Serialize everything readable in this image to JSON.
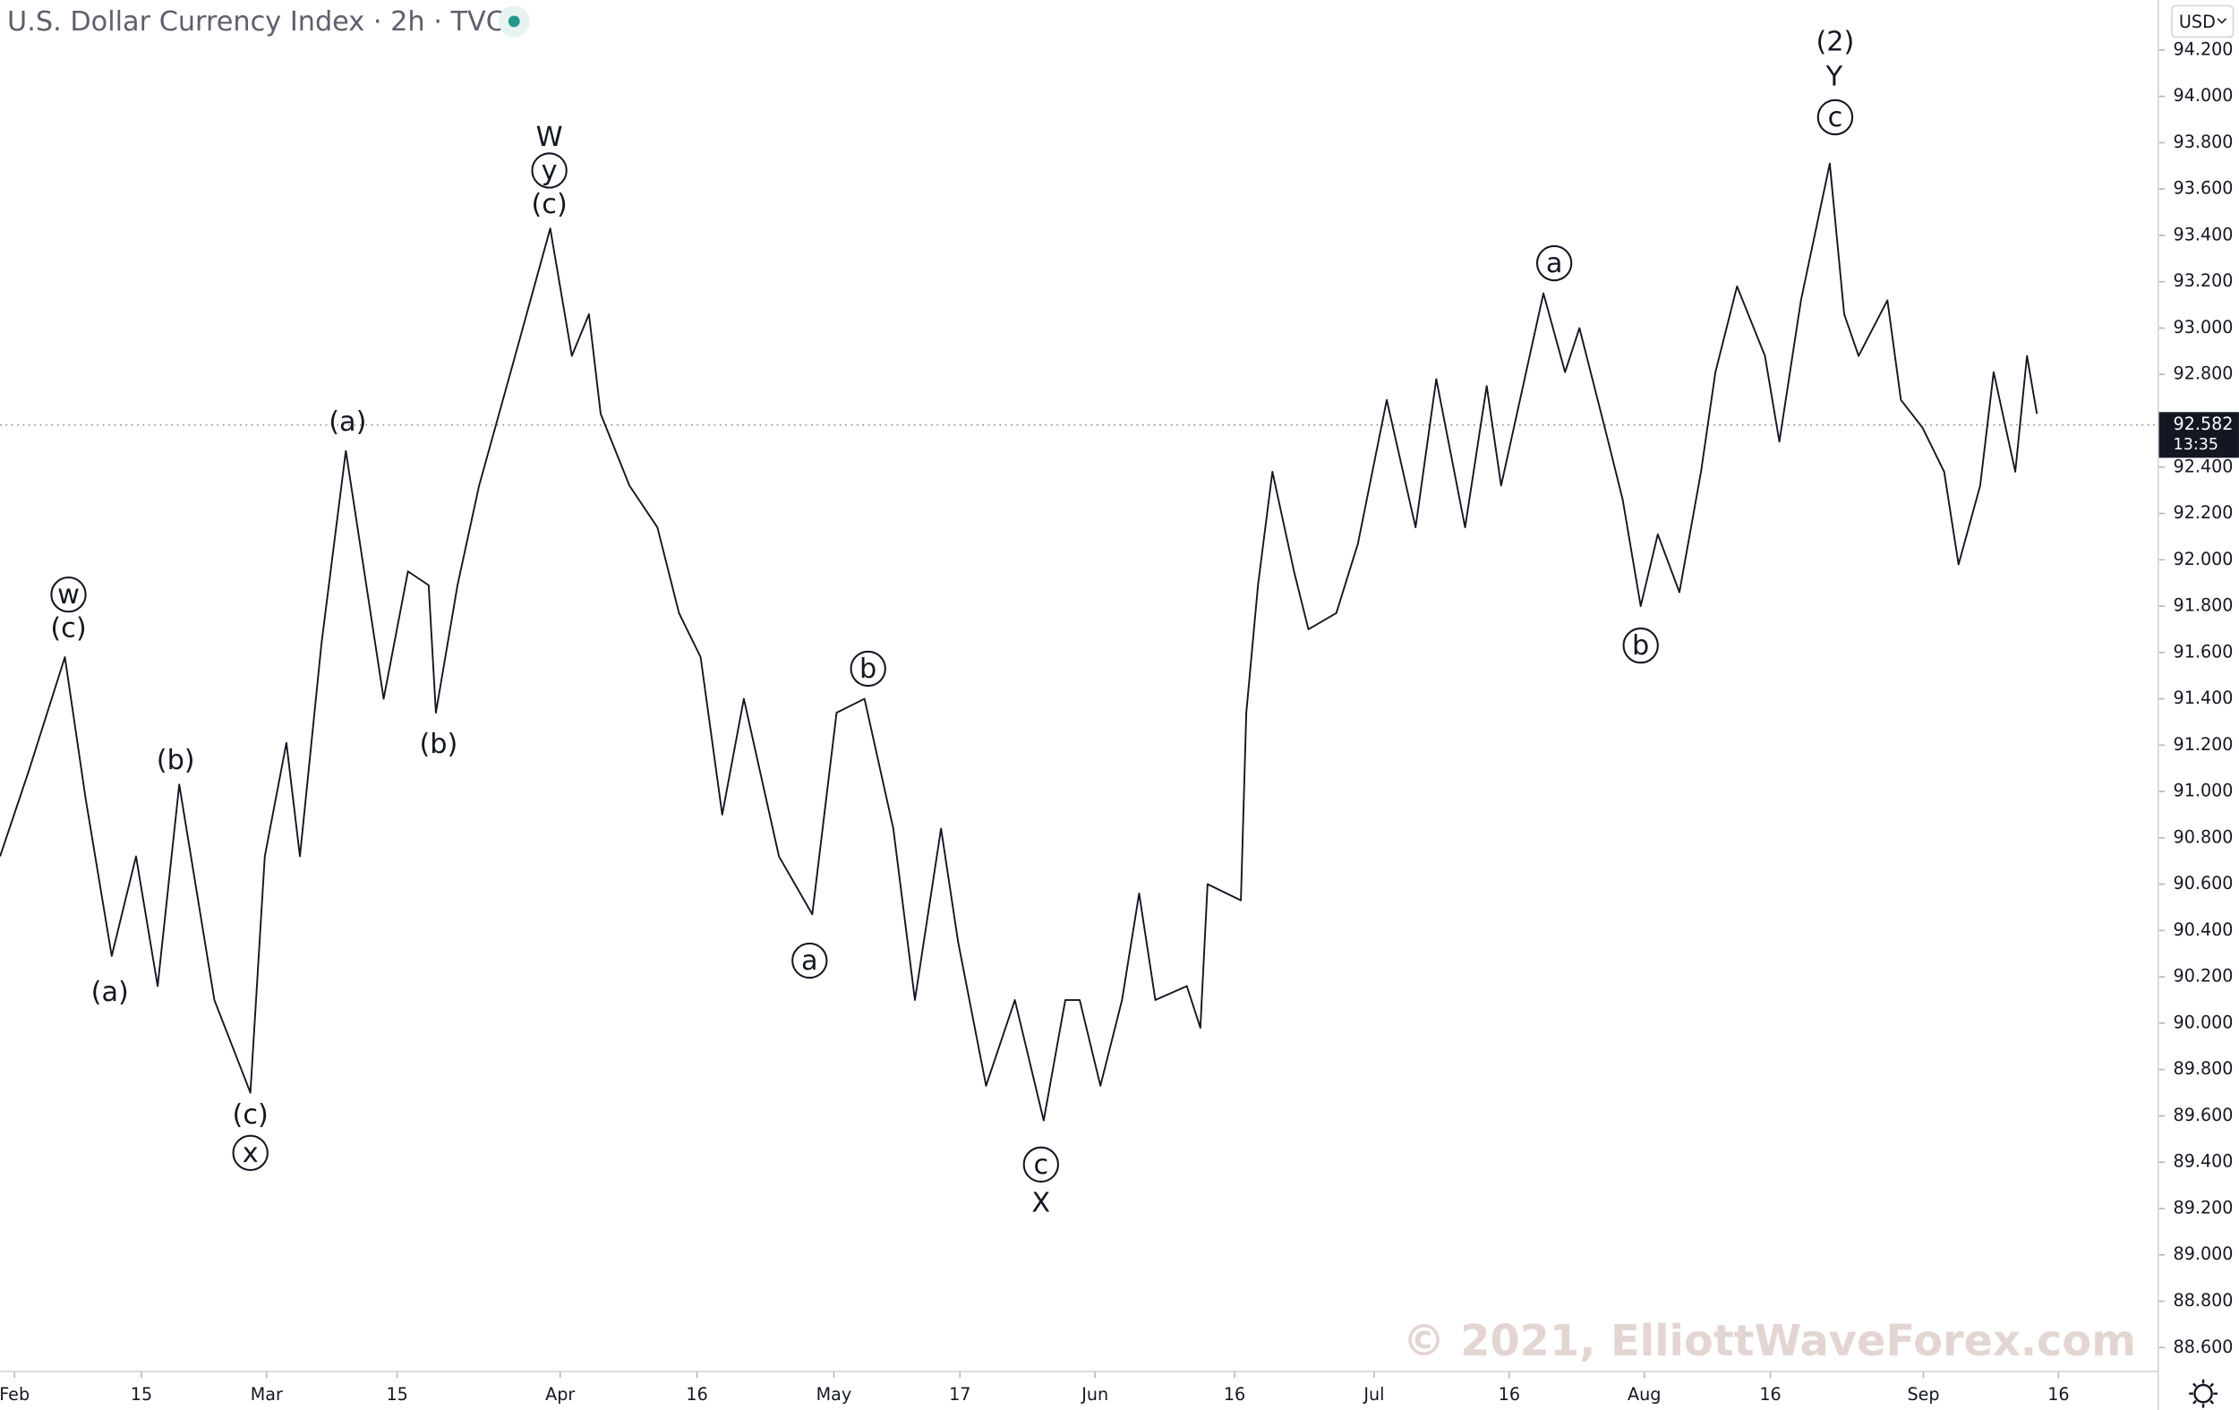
{
  "chart_data": {
    "type": "line",
    "title": "U.S. Dollar Currency Index · 2h · TVC",
    "currency": "USD",
    "watermark": "© 2021, ElliottWaveForex.com",
    "color": "#131722",
    "grid": false,
    "x": [
      -1.6,
      1.6,
      5.6,
      7.9,
      10.8,
      13.5,
      15.9,
      18.3,
      22.2,
      26.2,
      27.8,
      30.2,
      31.7,
      34.1,
      36.8,
      41.0,
      43.7,
      46.0,
      46.8,
      49.2,
      51.6,
      55.6,
      59.5,
      61.9,
      63.8,
      65.1,
      68.3,
      71.4,
      73.8,
      76.2,
      78.6,
      81.0,
      84.9,
      88.6,
      91.3,
      94.4,
      97.6,
      100.0,
      102.9,
      104.8,
      107.9,
      111.1,
      114.3,
      116.7,
      118.3,
      120.6,
      123.0,
      124.9,
      126.7,
      130.2,
      131.7,
      132.5,
      136.2,
      136.8,
      138.1,
      139.7,
      142.1,
      143.7,
      146.8,
      149.2,
      152.4,
      155.6,
      157.9,
      161.1,
      163.5,
      165.1,
      169.8,
      172.2,
      173.8,
      177.0,
      178.6,
      180.6,
      182.5,
      184.9,
      187.3,
      188.9,
      191.3,
      194.4,
      196.0,
      198.4,
      201.6,
      203.2,
      204.8,
      208.0,
      209.5,
      211.9,
      214.3,
      215.9,
      218.3,
      219.8,
      222.2,
      223.5,
      224.6
    ],
    "values": [
      90.72,
      91.09,
      91.58,
      90.97,
      90.29,
      90.72,
      90.16,
      91.03,
      90.1,
      89.7,
      90.72,
      91.21,
      90.72,
      91.64,
      92.47,
      91.4,
      91.95,
      91.89,
      91.34,
      91.89,
      92.32,
      92.88,
      93.43,
      92.88,
      93.06,
      92.63,
      92.32,
      92.14,
      91.77,
      91.58,
      90.9,
      91.4,
      90.72,
      90.47,
      91.34,
      91.4,
      90.84,
      90.1,
      90.84,
      90.35,
      89.73,
      90.1,
      89.58,
      90.1,
      90.1,
      89.73,
      90.1,
      90.56,
      90.1,
      90.16,
      89.98,
      90.6,
      90.53,
      91.34,
      91.89,
      92.38,
      91.95,
      91.7,
      91.77,
      92.07,
      92.69,
      92.14,
      92.78,
      92.14,
      92.75,
      92.32,
      93.15,
      92.81,
      93.0,
      92.51,
      92.26,
      91.8,
      92.11,
      91.86,
      92.38,
      92.81,
      93.18,
      92.88,
      92.51,
      93.12,
      93.71,
      93.06,
      92.88,
      93.12,
      92.69,
      92.57,
      92.38,
      91.98,
      92.32,
      92.81,
      92.38,
      92.88,
      92.63
    ],
    "xlim": [
      -1.6,
      238
    ],
    "ylim": [
      88.5,
      94.416
    ],
    "xticks": [
      {
        "value": 0,
        "label": "Feb"
      },
      {
        "value": 14.1,
        "label": "15"
      },
      {
        "value": 28,
        "label": "Mar"
      },
      {
        "value": 42.5,
        "label": "15"
      },
      {
        "value": 60.6,
        "label": "Apr"
      },
      {
        "value": 75.8,
        "label": "16"
      },
      {
        "value": 91,
        "label": "May"
      },
      {
        "value": 105,
        "label": "17"
      },
      {
        "value": 120,
        "label": "Jun"
      },
      {
        "value": 135.5,
        "label": "16"
      },
      {
        "value": 151,
        "label": "Jul"
      },
      {
        "value": 166,
        "label": "16"
      },
      {
        "value": 181,
        "label": "Aug"
      },
      {
        "value": 195,
        "label": "16"
      },
      {
        "value": 212,
        "label": "Sep"
      },
      {
        "value": 227,
        "label": "16"
      }
    ],
    "yticks": [
      {
        "value": 88.6,
        "label": "88.600"
      },
      {
        "value": 88.8,
        "label": "88.800"
      },
      {
        "value": 89.0,
        "label": "89.000"
      },
      {
        "value": 89.2,
        "label": "89.200"
      },
      {
        "value": 89.4,
        "label": "89.400"
      },
      {
        "value": 89.6,
        "label": "89.600"
      },
      {
        "value": 89.8,
        "label": "89.800"
      },
      {
        "value": 90.0,
        "label": "90.000"
      },
      {
        "value": 90.2,
        "label": "90.200"
      },
      {
        "value": 90.4,
        "label": "90.400"
      },
      {
        "value": 90.6,
        "label": "90.600"
      },
      {
        "value": 90.8,
        "label": "90.800"
      },
      {
        "value": 91.0,
        "label": "91.000"
      },
      {
        "value": 91.2,
        "label": "91.200"
      },
      {
        "value": 91.4,
        "label": "91.400"
      },
      {
        "value": 91.6,
        "label": "91.600"
      },
      {
        "value": 91.8,
        "label": "91.800"
      },
      {
        "value": 92.0,
        "label": "92.000"
      },
      {
        "value": 92.2,
        "label": "92.200"
      },
      {
        "value": 92.4,
        "label": "92.400"
      },
      {
        "value": 92.6,
        "label": "92.600"
      },
      {
        "value": 92.8,
        "label": "92.800"
      },
      {
        "value": 93.0,
        "label": "93.000"
      },
      {
        "value": 93.2,
        "label": "93.200"
      },
      {
        "value": 93.4,
        "label": "93.400"
      },
      {
        "value": 93.6,
        "label": "93.600"
      },
      {
        "value": 93.8,
        "label": "93.800"
      },
      {
        "value": 94.0,
        "label": "94.000"
      },
      {
        "value": 94.2,
        "label": "94.200"
      }
    ],
    "last_price": 92.582,
    "countdown": "13:35",
    "annotations": [
      {
        "text": "(2)",
        "x": 202.2,
        "y": 94.23,
        "circled": false
      },
      {
        "text": "Y",
        "x": 202.1,
        "y": 94.08,
        "circled": false
      },
      {
        "text": "c",
        "x": 202.2,
        "y": 93.91,
        "circled": true
      },
      {
        "text": "W",
        "x": 59.4,
        "y": 93.82,
        "circled": false
      },
      {
        "text": "y",
        "x": 59.4,
        "y": 93.68,
        "circled": true
      },
      {
        "text": "(c)",
        "x": 59.4,
        "y": 93.53,
        "circled": false
      },
      {
        "text": "(a)",
        "x": 37.0,
        "y": 92.59,
        "circled": false
      },
      {
        "text": "w",
        "x": 6.0,
        "y": 91.85,
        "circled": true
      },
      {
        "text": "(c)",
        "x": 6.0,
        "y": 91.7,
        "circled": false
      },
      {
        "text": "(b)",
        "x": 17.9,
        "y": 91.13,
        "circled": false
      },
      {
        "text": "(a)",
        "x": 10.6,
        "y": 90.13,
        "circled": false
      },
      {
        "text": "(c)",
        "x": 26.2,
        "y": 89.6,
        "circled": false
      },
      {
        "text": "x",
        "x": 26.2,
        "y": 89.44,
        "circled": true
      },
      {
        "text": "(b)",
        "x": 47.1,
        "y": 91.2,
        "circled": false
      },
      {
        "text": "b",
        "x": 94.8,
        "y": 91.53,
        "circled": true
      },
      {
        "text": "a",
        "x": 88.3,
        "y": 90.27,
        "circled": true
      },
      {
        "text": "c",
        "x": 114.0,
        "y": 89.39,
        "circled": true
      },
      {
        "text": "X",
        "x": 114.0,
        "y": 89.22,
        "circled": false
      },
      {
        "text": "a",
        "x": 171.0,
        "y": 93.28,
        "circled": true
      },
      {
        "text": "b",
        "x": 180.6,
        "y": 91.63,
        "circled": true
      }
    ]
  }
}
